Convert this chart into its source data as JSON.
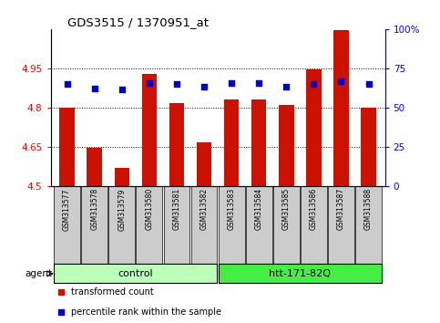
{
  "title": "GDS3515 / 1370951_at",
  "samples": [
    "GSM313577",
    "GSM313578",
    "GSM313579",
    "GSM313580",
    "GSM313581",
    "GSM313582",
    "GSM313583",
    "GSM313584",
    "GSM313585",
    "GSM313586",
    "GSM313587",
    "GSM313588"
  ],
  "bar_values": [
    4.8,
    4.645,
    4.57,
    4.93,
    4.815,
    4.665,
    4.83,
    4.83,
    4.81,
    4.945,
    5.095,
    4.8
  ],
  "percentile_values": [
    65,
    62,
    61.5,
    65.5,
    65,
    63,
    65.5,
    65.5,
    63.5,
    65,
    67,
    65
  ],
  "bar_bottom": 4.5,
  "ylim_left": [
    4.5,
    5.1
  ],
  "ylim_right": [
    0,
    100
  ],
  "yticks_left": [
    4.5,
    4.65,
    4.8,
    4.95
  ],
  "yticks_right": [
    0,
    25,
    50,
    75,
    100
  ],
  "ytick_labels_right": [
    "0",
    "25",
    "50",
    "75",
    "100%"
  ],
  "bar_color": "#cc1100",
  "percentile_color": "#0000cc",
  "group_labels": [
    "control",
    "htt-171-82Q"
  ],
  "agent_label": "agent",
  "legend_bar": "transformed count",
  "legend_pct": "percentile rank within the sample",
  "group_bg_control": "#bbffbb",
  "group_bg_htt": "#44ee44",
  "sample_bg": "#cccccc",
  "figsize": [
    4.83,
    3.54
  ],
  "dpi": 100
}
